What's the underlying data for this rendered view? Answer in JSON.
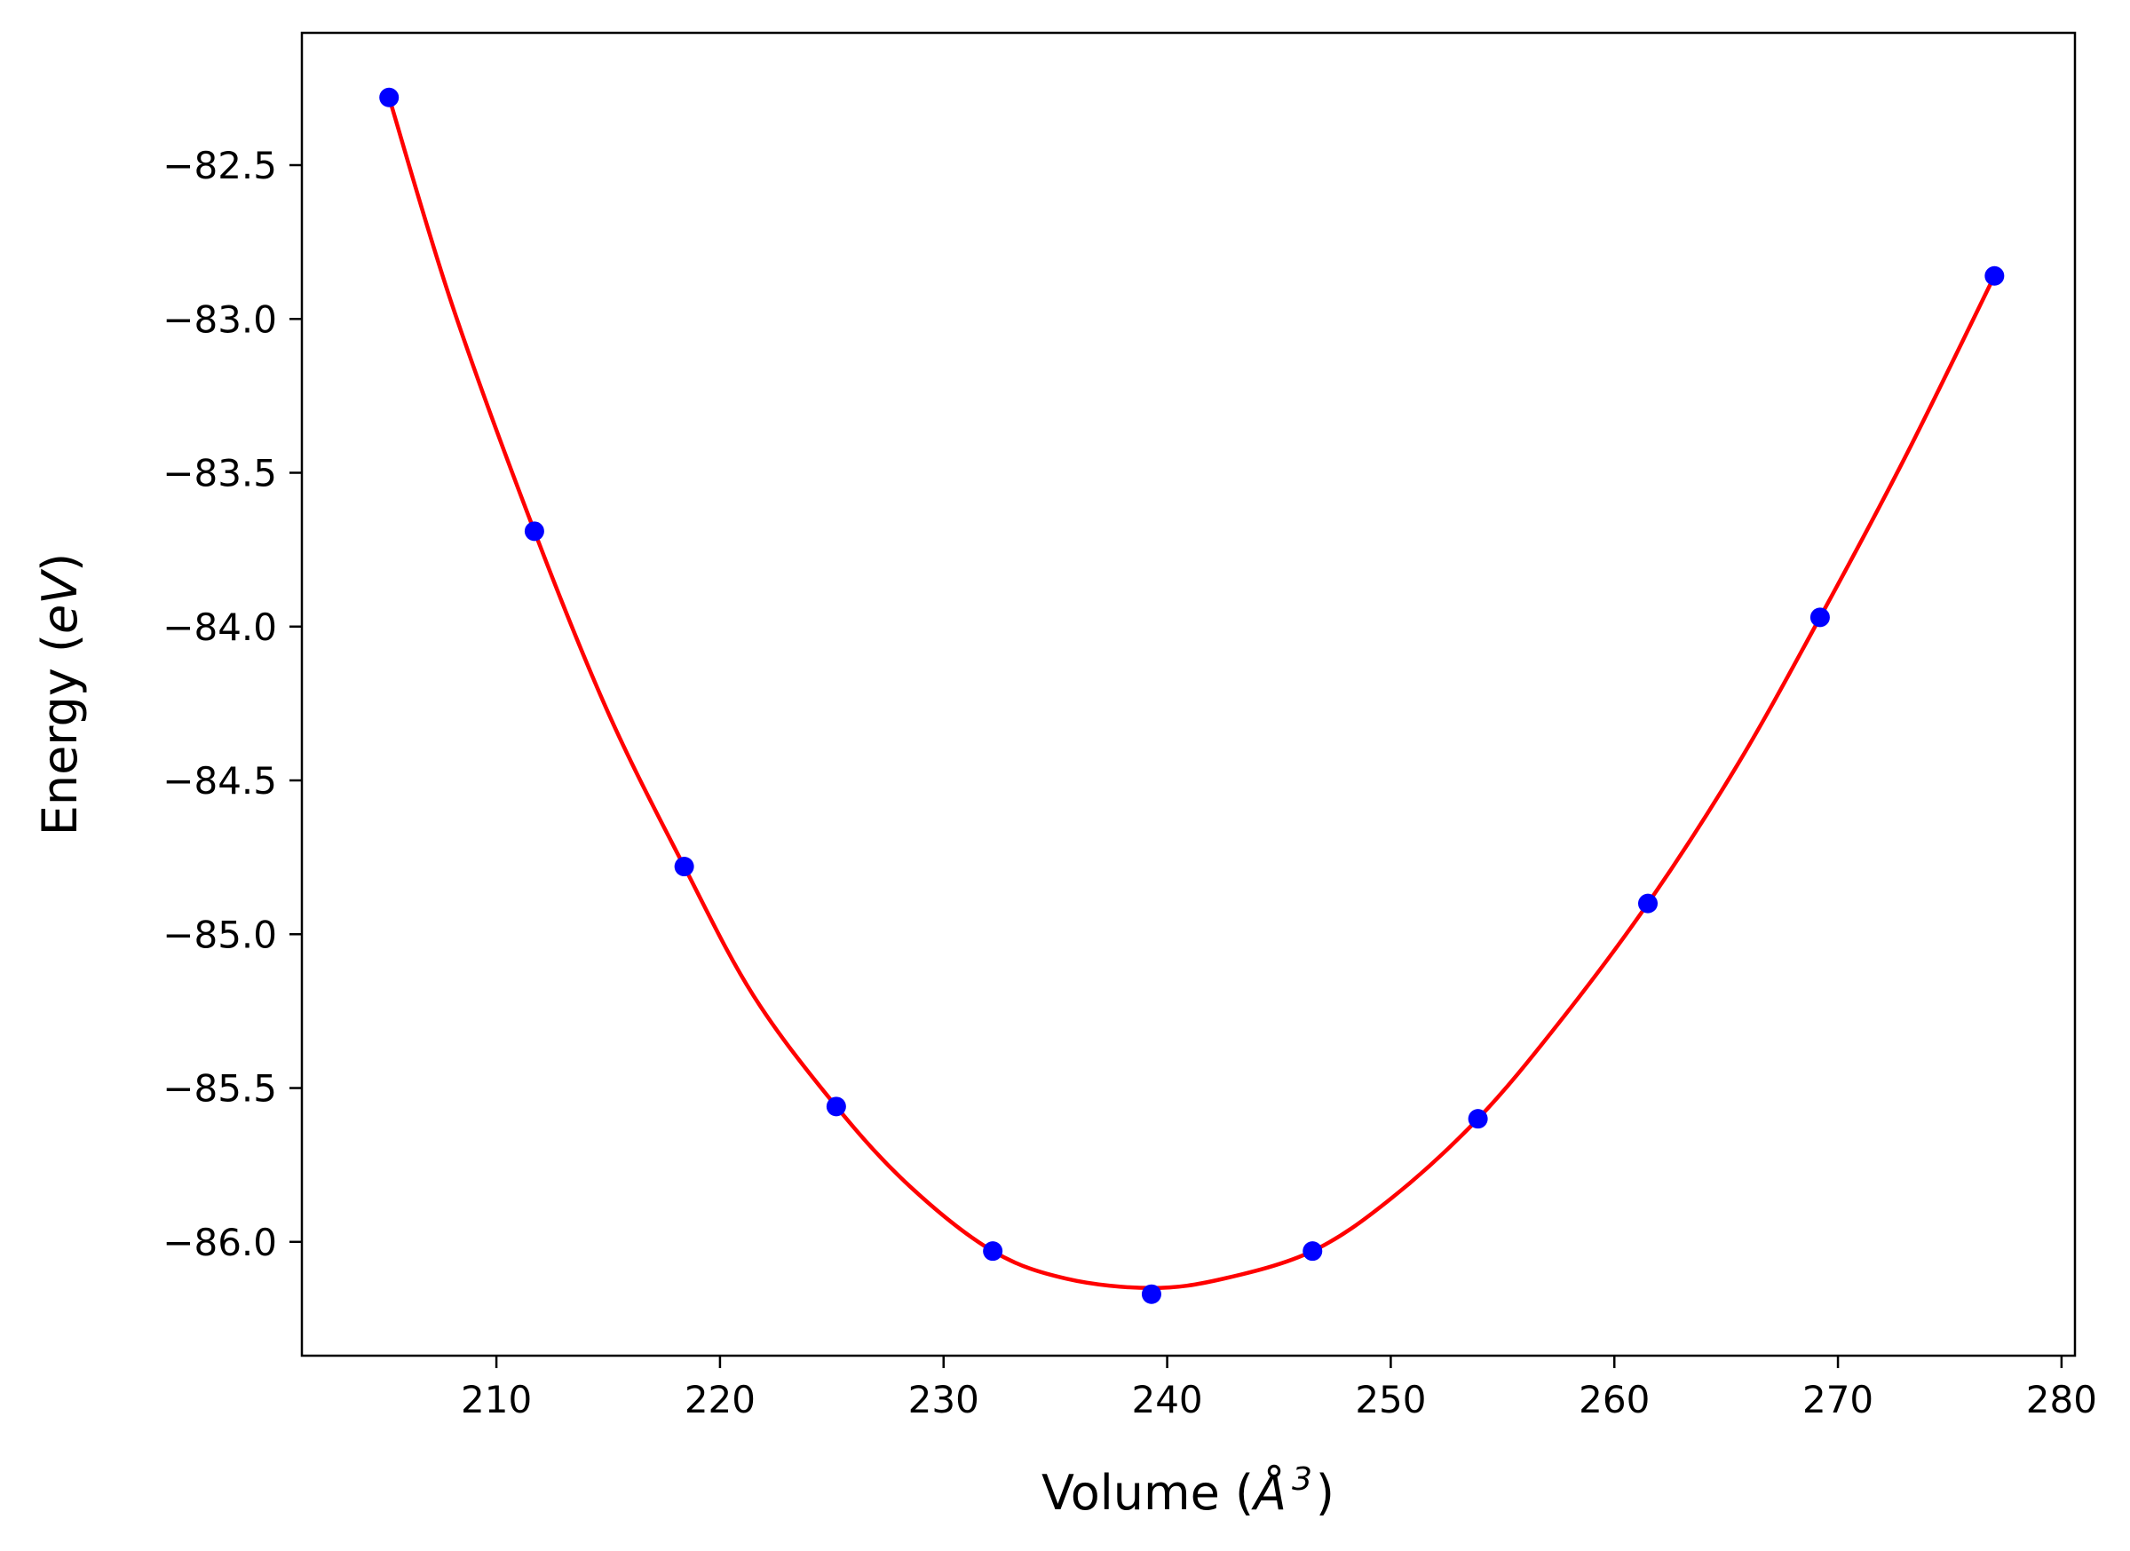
{
  "chart_data": {
    "type": "scatter",
    "xlabel": {
      "prefix": "Volume (",
      "symbol": "Å",
      "superscript": "3",
      "suffix": ")"
    },
    "ylabel": {
      "prefix": "Energy (",
      "unit": "eV",
      "suffix": ")"
    },
    "xlim": [
      201.3,
      280.6
    ],
    "ylim": [
      -86.37,
      -82.07
    ],
    "xticks": [
      210,
      220,
      230,
      240,
      250,
      260,
      270,
      280
    ],
    "yticks": [
      -82.5,
      -83.0,
      -83.5,
      -84.0,
      -84.5,
      -85.0,
      -85.5,
      -86.0
    ],
    "grid": false,
    "series": [
      {
        "kind": "points",
        "color": "#0000ff",
        "x": [
          205.2,
          211.7,
          218.4,
          225.2,
          232.2,
          239.3,
          246.5,
          253.9,
          261.5,
          269.2,
          277.0
        ],
        "y": [
          -82.28,
          -83.69,
          -84.78,
          -85.56,
          -86.03,
          -86.17,
          -86.03,
          -85.6,
          -84.9,
          -83.97,
          -82.86
        ]
      },
      {
        "kind": "fit-curve",
        "color": "#ff0000",
        "x": [
          205.2,
          208.0,
          211.7,
          215.0,
          218.4,
          221.5,
          225.2,
          228.5,
          232.2,
          235.5,
          239.3,
          242.5,
          246.5,
          250.0,
          253.9,
          257.5,
          261.5,
          265.5,
          269.2,
          273.0,
          277.0
        ],
        "y": [
          -82.28,
          -82.95,
          -83.69,
          -84.28,
          -84.78,
          -85.2,
          -85.56,
          -85.82,
          -86.03,
          -86.12,
          -86.15,
          -86.12,
          -86.03,
          -85.86,
          -85.6,
          -85.29,
          -84.9,
          -84.45,
          -83.97,
          -83.45,
          -82.86
        ]
      }
    ]
  }
}
